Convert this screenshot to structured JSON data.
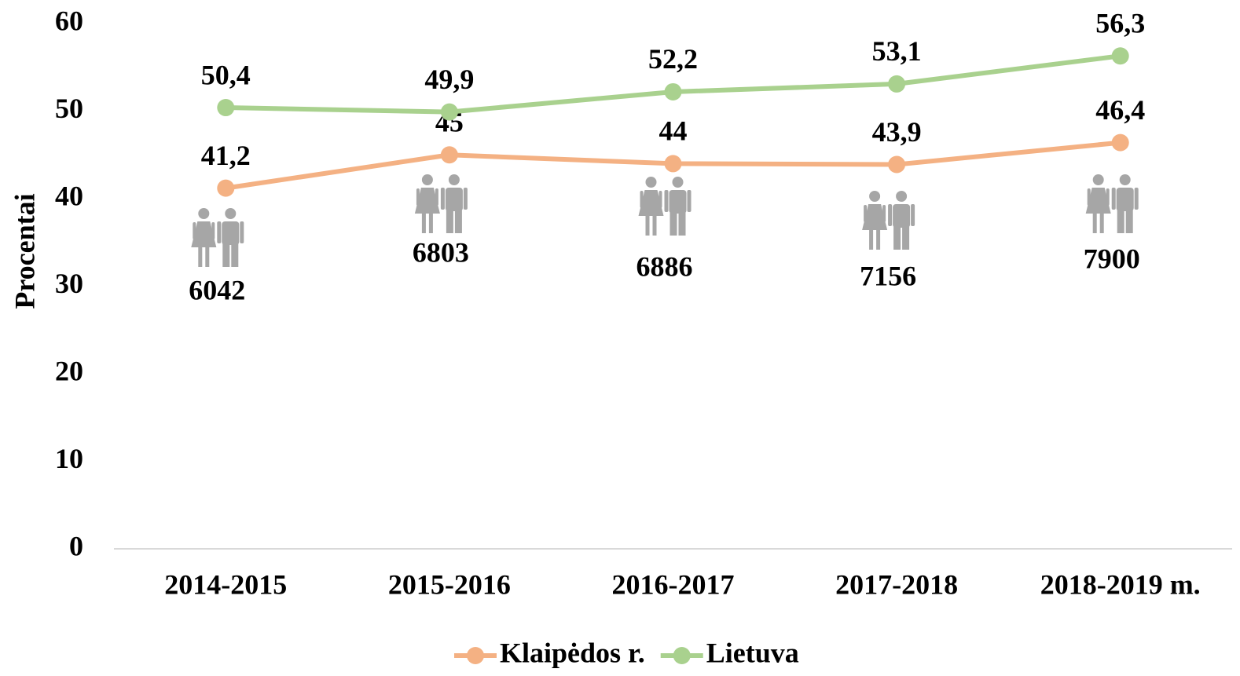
{
  "chart_data": {
    "type": "line",
    "y_label": "Procentai",
    "categories": [
      "2014-2015",
      "2015-2016",
      "2016-2017",
      "2017-2018",
      "2018-2019 m."
    ],
    "series": [
      {
        "name": "Klaipėdos r.",
        "color": "#f4b183",
        "values": [
          41.2,
          45,
          44,
          43.9,
          46.4
        ],
        "value_labels": [
          "41,2",
          "45",
          "44",
          "43,9",
          "46,4"
        ]
      },
      {
        "name": "Lietuva",
        "color": "#a9d18e",
        "values": [
          50.4,
          49.9,
          52.2,
          53.1,
          56.3
        ],
        "value_labels": [
          "50,4",
          "49,9",
          "52,2",
          "53,1",
          "56,3"
        ]
      }
    ],
    "annotations": [
      6042,
      6803,
      6886,
      7156,
      7900
    ],
    "ylim": [
      0,
      60
    ],
    "yticks": [
      0,
      10,
      20,
      30,
      40,
      50,
      60
    ],
    "grid": false,
    "legend": "bottom"
  }
}
